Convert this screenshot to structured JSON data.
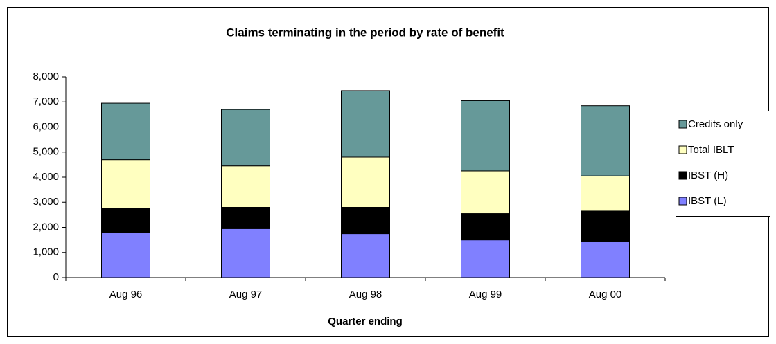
{
  "chart_data": {
    "type": "stacked_bar",
    "title": "Claims terminating in the period by rate of benefit",
    "x_label": "Quarter ending",
    "categories": [
      "Aug 96",
      "Aug 97",
      "Aug 98",
      "Aug 99",
      "Aug 00"
    ],
    "series": [
      {
        "name": "IBST (L)",
        "color": "#8080ff",
        "values": [
          1800,
          1950,
          1750,
          1500,
          1450
        ]
      },
      {
        "name": "IBST (H)",
        "color": "#000000",
        "values": [
          950,
          850,
          1050,
          1050,
          1200
        ]
      },
      {
        "name": "Total IBLT",
        "color": "#ffffc0",
        "values": [
          1950,
          1650,
          2000,
          1700,
          1400
        ]
      },
      {
        "name": "Credits only",
        "color": "#669999",
        "values": [
          2250,
          2250,
          2650,
          2800,
          2800
        ]
      }
    ],
    "ylim": [
      0,
      8000
    ],
    "yticks": [
      0,
      {
        "value": 1000,
        "label": "1,000"
      },
      {
        "value": 2000,
        "label": "2,000"
      },
      {
        "value": 3000,
        "label": "3,000"
      },
      {
        "value": 4000,
        "label": "4,000"
      },
      {
        "value": 5000,
        "label": "5,000"
      },
      {
        "value": 6000,
        "label": "6,000"
      },
      {
        "value": 7000,
        "label": "7,000"
      },
      {
        "value": 8000,
        "label": "8,000"
      }
    ],
    "legend": "right"
  }
}
